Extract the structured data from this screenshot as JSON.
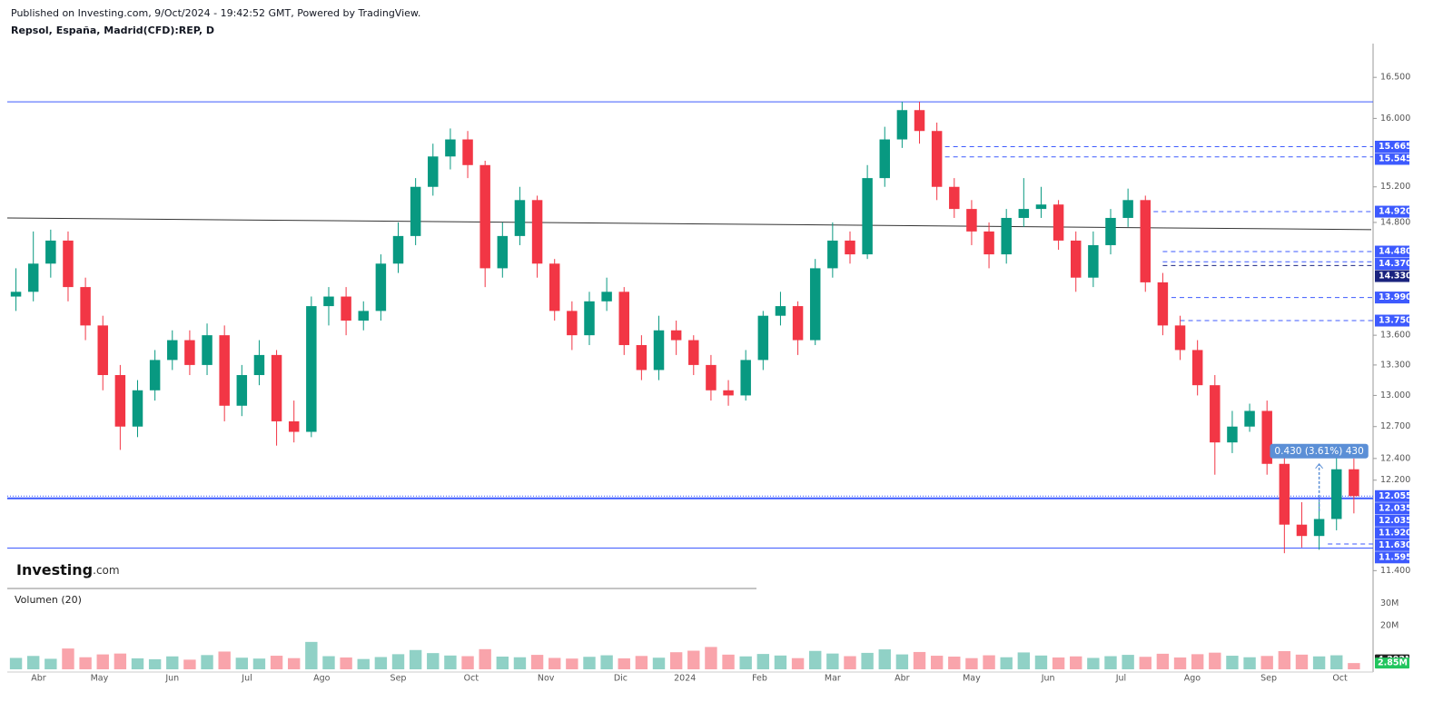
{
  "chart_data": {
    "type": "candlestick",
    "subtitle": "Published on Investing.com, 9/Oct/2024 - 19:42:52 GMT, Powered by TradingView.",
    "title": "Repsol, España, Madrid(CFD):REP, D",
    "logo": {
      "name": "Investing",
      "suffix": ".com"
    },
    "log_scale": true,
    "grid": false,
    "up_color": "#089981",
    "down_color": "#f23645",
    "ylim": [
      11.31,
      16.9
    ],
    "yticks": [
      {
        "value": 16.5,
        "label": "16.500"
      },
      {
        "value": 16.0,
        "label": "16.000"
      },
      {
        "value": 15.2,
        "label": "15.200"
      },
      {
        "value": 14.8,
        "label": "14.800"
      },
      {
        "value": 13.6,
        "label": "13.600"
      },
      {
        "value": 13.3,
        "label": "13.300"
      },
      {
        "value": 13.0,
        "label": "13.000"
      },
      {
        "value": 12.7,
        "label": "12.700"
      },
      {
        "value": 12.4,
        "label": "12.400"
      },
      {
        "value": 12.2,
        "label": "12.200"
      },
      {
        "value": 11.4,
        "label": "11.400"
      }
    ],
    "xlim": [
      -0.5,
      78
    ],
    "xticks": [
      {
        "value": 1.3,
        "label": "Abr"
      },
      {
        "value": 4.8,
        "label": "May"
      },
      {
        "value": 9.0,
        "label": "Jun"
      },
      {
        "value": 13.3,
        "label": "Jul"
      },
      {
        "value": 17.6,
        "label": "Ago"
      },
      {
        "value": 22.0,
        "label": "Sep"
      },
      {
        "value": 26.2,
        "label": "Oct"
      },
      {
        "value": 30.5,
        "label": "Nov"
      },
      {
        "value": 34.8,
        "label": "Dic"
      },
      {
        "value": 38.5,
        "label": "2024"
      },
      {
        "value": 42.8,
        "label": "Feb"
      },
      {
        "value": 47.0,
        "label": "Mar"
      },
      {
        "value": 51.0,
        "label": "Abr"
      },
      {
        "value": 55.0,
        "label": "May"
      },
      {
        "value": 59.4,
        "label": "Jun"
      },
      {
        "value": 63.6,
        "label": "Jul"
      },
      {
        "value": 67.7,
        "label": "Ago"
      },
      {
        "value": 72.1,
        "label": "Sep"
      },
      {
        "value": 76.2,
        "label": "Oct"
      }
    ],
    "open": [
      14.0,
      14.05,
      14.35,
      14.6,
      14.1,
      13.7,
      13.2,
      12.7,
      13.05,
      13.35,
      13.55,
      13.3,
      13.6,
      12.9,
      13.2,
      13.4,
      12.75,
      12.65,
      13.9,
      14.0,
      13.75,
      13.85,
      14.35,
      14.65,
      15.2,
      15.55,
      15.75,
      15.45,
      14.3,
      14.65,
      15.05,
      14.35,
      13.85,
      13.6,
      13.95,
      14.05,
      13.5,
      13.25,
      13.65,
      13.55,
      13.3,
      13.05,
      13.0,
      13.35,
      13.8,
      13.9,
      13.55,
      14.3,
      14.6,
      14.45,
      15.3,
      15.75,
      16.1,
      15.85,
      15.2,
      14.95,
      14.7,
      14.45,
      14.85,
      14.95,
      15.0,
      14.6,
      14.2,
      14.55,
      14.85,
      15.05,
      14.15,
      13.7,
      13.45,
      13.1,
      12.55,
      12.7,
      12.85,
      12.35,
      11.8,
      11.7,
      11.85,
      12.3
    ],
    "high": [
      14.3,
      14.7,
      14.72,
      14.7,
      14.2,
      13.8,
      13.3,
      13.15,
      13.45,
      13.65,
      13.65,
      13.72,
      13.7,
      13.3,
      13.55,
      13.45,
      12.95,
      14.0,
      14.1,
      14.1,
      13.95,
      14.45,
      14.8,
      15.3,
      15.7,
      15.88,
      15.85,
      15.5,
      14.8,
      15.2,
      15.1,
      14.4,
      13.95,
      14.05,
      14.2,
      14.1,
      13.6,
      13.8,
      13.75,
      13.6,
      13.4,
      13.15,
      13.45,
      13.85,
      14.05,
      13.95,
      14.4,
      14.8,
      14.7,
      15.45,
      15.9,
      16.2,
      16.2,
      15.95,
      15.3,
      15.05,
      14.8,
      14.95,
      15.3,
      15.2,
      15.05,
      14.7,
      14.7,
      14.95,
      15.18,
      15.1,
      14.25,
      13.8,
      13.55,
      13.2,
      12.85,
      12.92,
      12.95,
      12.45,
      12.0,
      12.0,
      12.45,
      12.4
    ],
    "low": [
      13.85,
      13.95,
      14.2,
      13.95,
      13.55,
      13.05,
      12.48,
      12.6,
      12.95,
      13.25,
      13.2,
      13.2,
      12.75,
      12.8,
      13.1,
      12.52,
      12.55,
      12.6,
      13.7,
      13.6,
      13.65,
      13.75,
      14.25,
      14.55,
      15.1,
      15.4,
      15.3,
      14.1,
      14.2,
      14.55,
      14.2,
      13.75,
      13.45,
      13.5,
      13.85,
      13.4,
      13.15,
      13.15,
      13.4,
      13.2,
      12.95,
      12.9,
      12.95,
      13.25,
      13.7,
      13.4,
      13.5,
      14.2,
      14.35,
      14.4,
      15.2,
      15.65,
      15.7,
      15.05,
      14.85,
      14.55,
      14.3,
      14.35,
      14.75,
      14.85,
      14.5,
      14.05,
      14.1,
      14.45,
      14.75,
      14.05,
      13.6,
      13.35,
      13.0,
      12.25,
      12.45,
      12.65,
      12.25,
      11.55,
      11.6,
      11.58,
      11.75,
      11.9
    ],
    "close": [
      14.05,
      14.35,
      14.6,
      14.1,
      13.7,
      13.2,
      12.7,
      13.05,
      13.35,
      13.55,
      13.3,
      13.6,
      12.9,
      13.2,
      13.4,
      12.75,
      12.65,
      13.9,
      14.0,
      13.75,
      13.85,
      14.35,
      14.65,
      15.2,
      15.55,
      15.75,
      15.45,
      14.3,
      14.65,
      15.05,
      14.35,
      13.85,
      13.6,
      13.95,
      14.05,
      13.5,
      13.25,
      13.65,
      13.55,
      13.3,
      13.05,
      13.0,
      13.35,
      13.8,
      13.9,
      13.55,
      14.3,
      14.6,
      14.45,
      15.3,
      15.75,
      16.1,
      15.85,
      15.2,
      14.95,
      14.7,
      14.45,
      14.85,
      14.95,
      15.0,
      14.6,
      14.2,
      14.55,
      14.85,
      15.05,
      14.15,
      13.7,
      13.45,
      13.1,
      12.55,
      12.7,
      12.85,
      12.35,
      11.8,
      11.7,
      11.85,
      12.3,
      12.055
    ],
    "level_color": "#3d5afe",
    "levels": [
      {
        "value": 16.2,
        "style": "solid"
      },
      {
        "value": 15.665,
        "badge": true,
        "style": "dashed",
        "from": 53
      },
      {
        "value": 15.545,
        "badge": true,
        "style": "dashed",
        "from": 53
      },
      {
        "value": 14.92,
        "label": "14.920",
        "style": "dashed",
        "from": 65
      },
      {
        "value": 14.48,
        "label": "14.480",
        "style": "dashed",
        "from": 66
      },
      {
        "value": 14.37,
        "label": "14.370",
        "style": "dashed",
        "from": 66
      },
      {
        "value": 14.33,
        "label": "14.330",
        "style": "dashed",
        "from": 66,
        "color": "#1a237e"
      },
      {
        "value": 13.99,
        "label": "13.990",
        "style": "dashed",
        "from": 66.5
      },
      {
        "value": 13.75,
        "label": "13.750",
        "style": "dashed",
        "from": 67
      },
      {
        "value": 12.055,
        "badge": true,
        "style": "dotted"
      },
      {
        "value": 12.035,
        "badge": true,
        "style": "thick"
      },
      {
        "value": 12.035,
        "badge": true,
        "style": "none"
      },
      {
        "value": 11.92,
        "label": "11.920",
        "style": "none"
      },
      {
        "value": 11.63,
        "label": "11.630",
        "style": "dashed",
        "from": 75.5
      },
      {
        "value": 11.595,
        "badge": true,
        "style": "solid"
      }
    ],
    "trendline": {
      "from": [
        -0.5,
        14.85
      ],
      "to": [
        78,
        14.72
      ],
      "color": "#333333"
    },
    "measure": {
      "label": "0.430 (3.61%) 430",
      "x": 75,
      "from": 11.92,
      "to": 12.35,
      "color": "#5b8fd6"
    },
    "volume": {
      "label": "Volumen (20)",
      "ylim": [
        0,
        34
      ],
      "yticks": [
        {
          "value": 30,
          "label": "30M"
        },
        {
          "value": 20,
          "label": "20M"
        }
      ],
      "values": [
        5.2,
        6.1,
        4.8,
        9.5,
        5.5,
        6.8,
        7.2,
        5.0,
        4.6,
        5.9,
        4.4,
        6.5,
        8.1,
        5.3,
        4.9,
        6.2,
        5.1,
        12.5,
        6.0,
        5.4,
        4.7,
        5.6,
        6.9,
        8.8,
        7.4,
        6.3,
        6.0,
        9.2,
        5.8,
        5.5,
        6.6,
        5.2,
        4.9,
        5.7,
        6.4,
        5.0,
        6.1,
        5.3,
        7.8,
        8.5,
        10.2,
        6.7,
        5.9,
        7.0,
        6.3,
        5.1,
        8.4,
        7.2,
        6.0,
        7.5,
        9.1,
        6.8,
        7.9,
        6.2,
        5.8,
        5.1,
        6.4,
        5.5,
        7.7,
        6.3,
        5.4,
        5.9,
        5.2,
        6.0,
        6.6,
        5.7,
        7.1,
        5.4,
        6.9,
        7.6,
        6.2,
        5.5,
        6.1,
        8.3,
        6.7,
        5.9,
        6.4,
        2.85
      ],
      "ma_label": {
        "value": 4.292,
        "label": "4.292M",
        "color": "#222222"
      },
      "last_label": {
        "value": 2.85,
        "label": "2.85M",
        "color": "#22c55e"
      }
    }
  }
}
